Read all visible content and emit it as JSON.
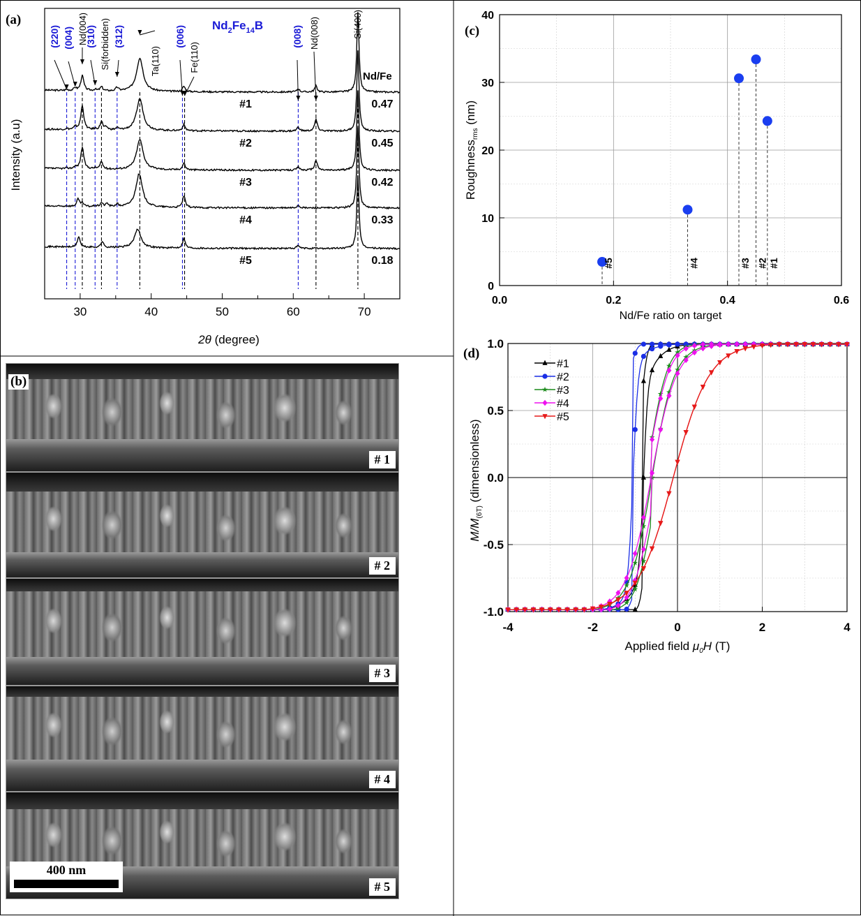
{
  "panels": {
    "a": "(a)",
    "b": "(b)",
    "c": "(c)",
    "d": "(d)"
  },
  "panel_a": {
    "title": "Nd2Fe14B",
    "title_parts": {
      "a": "Nd",
      "s1": "2",
      "b": "Fe",
      "s2": "14",
      "c": "B"
    },
    "xlabel": "2θ (degree)",
    "xlabel_parts": {
      "var": "2θ",
      "rest": " (degree)"
    },
    "ylabel": "Intensity (a.u)",
    "ratio_header": "Nd/Fe",
    "peak_labels": [
      {
        "label": "(220)",
        "color": "#1a1ad6"
      },
      {
        "label": "(004)",
        "color": "#1a1ad6"
      },
      {
        "label": "Nd(004)",
        "color": "#000000"
      },
      {
        "label": "(310)",
        "color": "#1a1ad6"
      },
      {
        "label": "Si(forbidden)",
        "color": "#000000"
      },
      {
        "label": "(312)",
        "color": "#1a1ad6"
      },
      {
        "label": "Ta(110)",
        "color": "#000000"
      },
      {
        "label": "(006)",
        "color": "#1a1ad6"
      },
      {
        "label": "Fe(110)",
        "color": "#000000"
      },
      {
        "label": "(008)",
        "color": "#1a1ad6"
      },
      {
        "label": "Nd(008)",
        "color": "#000000"
      },
      {
        "label": "Si(400)",
        "color": "#000000"
      }
    ],
    "samples": [
      {
        "name": "#1",
        "ratio": "0.47"
      },
      {
        "name": "#2",
        "ratio": "0.45"
      },
      {
        "name": "#3",
        "ratio": "0.42"
      },
      {
        "name": "#4",
        "ratio": "0.33"
      },
      {
        "name": "#5",
        "ratio": "0.18"
      }
    ]
  },
  "panel_b": {
    "images": [
      "# 1",
      "# 2",
      "# 3",
      "# 4",
      "# 5"
    ],
    "scale_bar": "400 nm"
  },
  "chart_data": [
    {
      "id": "a",
      "type": "line",
      "xlabel": "2θ (degree)",
      "ylabel": "Intensity (a.u)",
      "xlim": [
        25,
        75
      ],
      "xticks": [
        30,
        40,
        50,
        60,
        70
      ],
      "peak_positions": [
        28.1,
        29.3,
        30.3,
        32.1,
        33.0,
        35.2,
        38.4,
        44.4,
        44.7,
        60.7,
        63.2,
        69.1
      ],
      "series": [
        {
          "name": "#1",
          "peaks": [
            [
              28.1,
              0.03
            ],
            [
              29.3,
              0.08
            ],
            [
              30.3,
              0.45
            ],
            [
              32.1,
              0.04
            ],
            [
              33.0,
              0.12
            ],
            [
              35.2,
              0.1
            ],
            [
              38.4,
              1.0
            ],
            [
              44.6,
              0.16
            ],
            [
              60.7,
              0.1
            ],
            [
              63.2,
              0.18
            ],
            [
              69.1,
              2.4
            ]
          ]
        },
        {
          "name": "#2",
          "peaks": [
            [
              28.1,
              0.03
            ],
            [
              29.3,
              0.08
            ],
            [
              30.3,
              0.72
            ],
            [
              32.1,
              0.03
            ],
            [
              33.0,
              0.25
            ],
            [
              33.7,
              0.08
            ],
            [
              35.2,
              0.06
            ],
            [
              38.4,
              0.95
            ],
            [
              44.6,
              0.18
            ],
            [
              60.7,
              0.12
            ],
            [
              63.2,
              0.35
            ],
            [
              69.1,
              2.4
            ]
          ]
        },
        {
          "name": "#3",
          "peaks": [
            [
              28.1,
              0.02
            ],
            [
              29.3,
              0.06
            ],
            [
              30.3,
              0.65
            ],
            [
              32.1,
              0.03
            ],
            [
              33.0,
              0.22
            ],
            [
              38.4,
              0.9
            ],
            [
              44.6,
              0.2
            ],
            [
              60.7,
              0.1
            ],
            [
              63.2,
              0.3
            ],
            [
              69.1,
              2.4
            ]
          ]
        },
        {
          "name": "#4",
          "peaks": [
            [
              28.1,
              0.02
            ],
            [
              29.7,
              0.22
            ],
            [
              30.3,
              0.1
            ],
            [
              32.1,
              0.03
            ],
            [
              33.0,
              0.12
            ],
            [
              33.8,
              0.1
            ],
            [
              35.2,
              0.08
            ],
            [
              38.3,
              1.0
            ],
            [
              44.6,
              0.35
            ],
            [
              60.7,
              0.08
            ],
            [
              69.1,
              2.4
            ]
          ]
        },
        {
          "name": "#5",
          "peaks": [
            [
              29.8,
              0.32
            ],
            [
              33.1,
              0.18
            ],
            [
              38.1,
              0.55
            ],
            [
              44.6,
              0.3
            ],
            [
              60.7,
              0.08
            ],
            [
              69.1,
              2.2
            ]
          ]
        }
      ]
    },
    {
      "id": "c",
      "type": "scatter",
      "xlabel": "Nd/Fe ratio on target",
      "ylabel": "Roughness",
      "ylabel_sub": "rms",
      "ylabel_unit": " (nm)",
      "xlim": [
        0.0,
        0.6
      ],
      "ylim": [
        0,
        40
      ],
      "xticks": [
        "0.0",
        "0.2",
        "0.4",
        "0.6"
      ],
      "yticks": [
        "0",
        "10",
        "20",
        "30",
        "40"
      ],
      "grid": true,
      "points": [
        {
          "label": "#5",
          "x": 0.18,
          "y": 3.5
        },
        {
          "label": "#4",
          "x": 0.33,
          "y": 11.2
        },
        {
          "label": "#3",
          "x": 0.42,
          "y": 30.6
        },
        {
          "label": "#2",
          "x": 0.45,
          "y": 33.4
        },
        {
          "label": "#1",
          "x": 0.47,
          "y": 24.3
        }
      ],
      "color": "#1a3ef0"
    },
    {
      "id": "d",
      "type": "line",
      "xlabel": "Applied field μ0H (T)",
      "xlabel_parts": {
        "pre": "Applied field ",
        "mu": "μ",
        "sub": "0",
        "h": "H",
        "post": " (T)"
      },
      "ylabel": "M/M(6T) (dimensionless)",
      "ylabel_parts": {
        "m": "M/M",
        "sub": "(6T)",
        "post": " (dimensionless)"
      },
      "xlim": [
        -4,
        4
      ],
      "ylim": [
        -1.0,
        1.0
      ],
      "xticks": [
        "-4",
        "-2",
        "0",
        "2",
        "4"
      ],
      "yticks": [
        "-1.0",
        "-0.5",
        "0.0",
        "0.5",
        "1.0"
      ],
      "legend_position": "top-left",
      "series": [
        {
          "name": "#1",
          "color": "#000000",
          "marker": "triangle-up",
          "hc": 0.8,
          "knee": 0.72,
          "w_sq": 0.1,
          "w_tail": 0.5
        },
        {
          "name": "#2",
          "color": "#1a2ee6",
          "marker": "circle",
          "hc": 1.05,
          "knee": 0.88,
          "w_sq": 0.12,
          "w_tail": 0.55
        },
        {
          "name": "#3",
          "color": "#1a8a1a",
          "marker": "star",
          "hc": 0.6,
          "knee": 0.3,
          "w_sq": 0.4,
          "w_tail": 0.6
        },
        {
          "name": "#4",
          "color": "#ee11ee",
          "marker": "diamond",
          "hc": 0.62,
          "knee": 0.25,
          "w_sq": 0.45,
          "w_tail": 0.65
        },
        {
          "name": "#5",
          "color": "#e61a1a",
          "marker": "triangle-down",
          "hc": 0.1,
          "knee": 0.0,
          "w_sq": 0.85,
          "w_tail": 0.85
        }
      ]
    }
  ]
}
